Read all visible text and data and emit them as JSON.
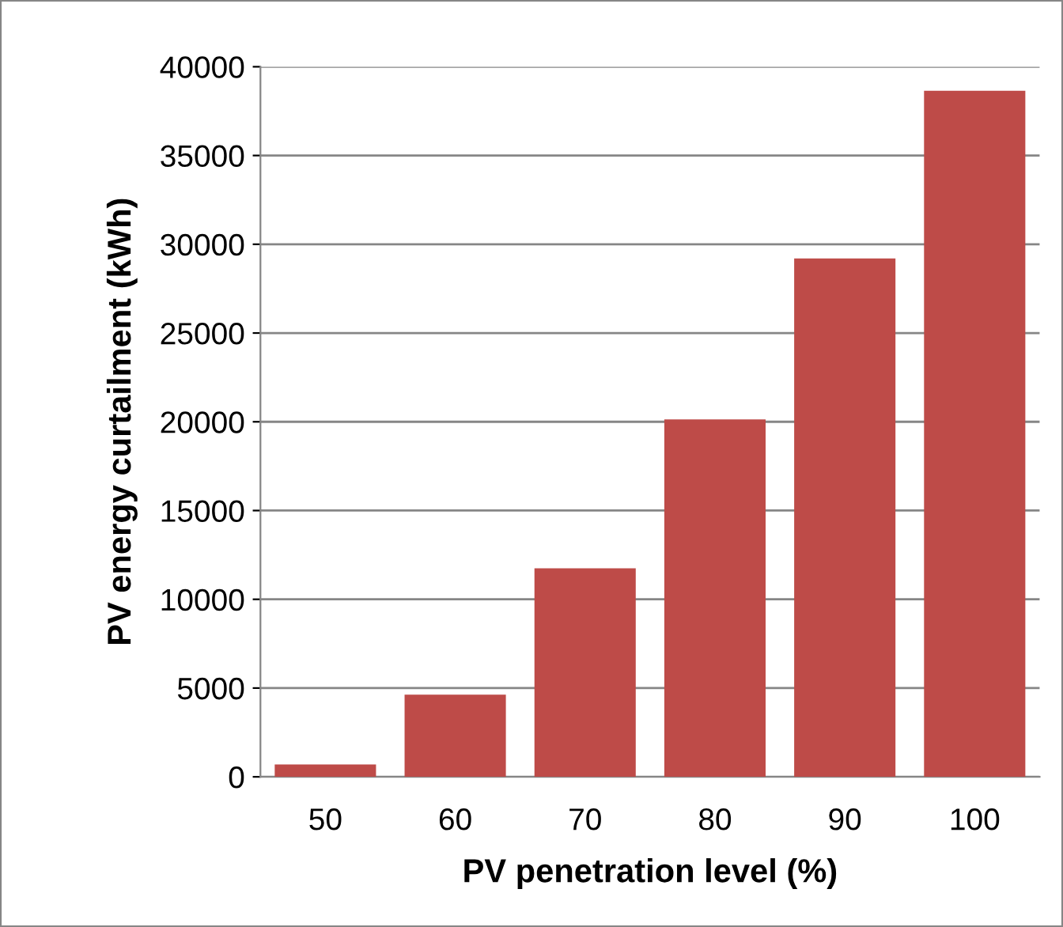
{
  "chart_data": {
    "type": "bar",
    "xlabel": "PV penetration level (%)",
    "ylabel": "PV energy curtailment (kWh)",
    "categories": [
      "50",
      "60",
      "70",
      "80",
      "90",
      "100"
    ],
    "values": [
      700,
      4630,
      11750,
      20130,
      29200,
      38650
    ],
    "color": "#be4b48",
    "ylim": [
      0,
      40000
    ],
    "yticks": [
      0,
      5000,
      10000,
      15000,
      20000,
      25000,
      30000,
      35000,
      40000
    ],
    "grid": "y",
    "legend": false
  }
}
